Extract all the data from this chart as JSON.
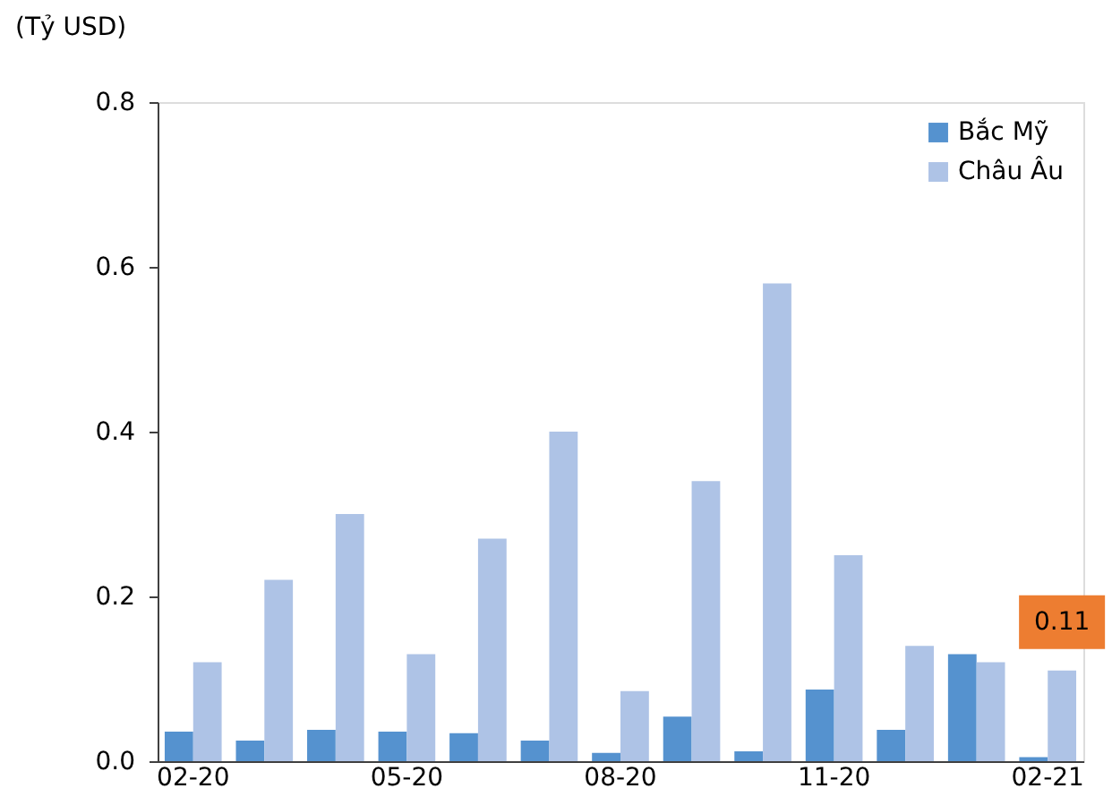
{
  "chart_data": {
    "type": "bar",
    "ylabel": "(Tỷ USD)",
    "categories": [
      "02-20",
      null,
      null,
      "05-20",
      null,
      null,
      "08-20",
      null,
      null,
      "11-20",
      null,
      null,
      "02-21"
    ],
    "series": [
      {
        "name": "Bắc Mỹ",
        "color": "#5592cf",
        "values": [
          0.036,
          0.025,
          0.038,
          0.036,
          0.034,
          0.025,
          0.01,
          0.054,
          0.012,
          0.087,
          0.038,
          0.13,
          0.005
        ]
      },
      {
        "name": "Châu Âu",
        "color": "#aec3e6",
        "values": [
          0.12,
          0.22,
          0.3,
          0.13,
          0.27,
          0.4,
          0.085,
          0.34,
          0.58,
          0.25,
          0.14,
          0.12,
          0.11
        ],
        "value_labels": [
          null,
          null,
          null,
          null,
          null,
          null,
          null,
          null,
          null,
          null,
          null,
          null,
          "0.11"
        ]
      }
    ],
    "ylim": [
      0,
      0.8
    ],
    "yticks": [
      {
        "value": 0,
        "label": "0.0"
      },
      0.2,
      0.4,
      0.6,
      0.8
    ],
    "grid": false,
    "legend": "top right"
  }
}
